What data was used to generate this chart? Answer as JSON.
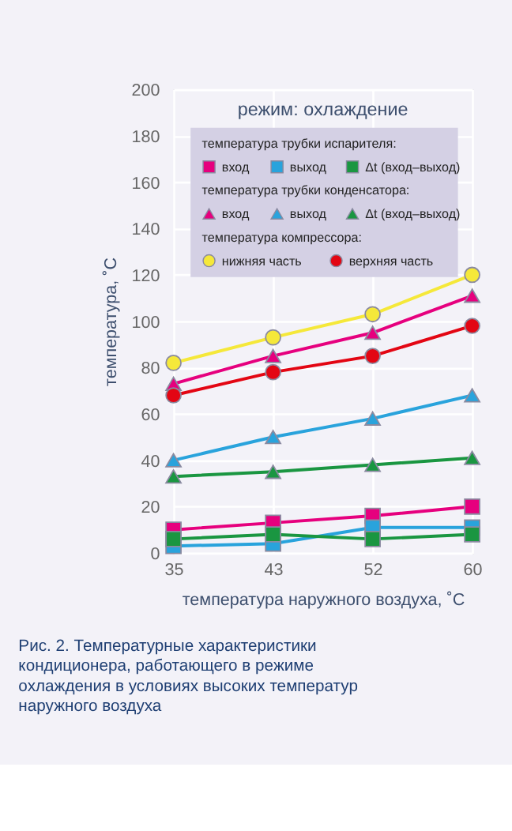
{
  "chart_data": {
    "type": "line",
    "title": "режим: охлаждение",
    "xlabel": "температура наружного воздуха, ˚С",
    "ylabel": "температура, ˚С",
    "categories": [
      "35",
      "43",
      "52",
      "60"
    ],
    "ylim": [
      0,
      200
    ],
    "yticks": [
      0,
      20,
      40,
      60,
      80,
      100,
      120,
      140,
      160,
      180,
      200
    ],
    "grid": true,
    "legend": "top",
    "series": [
      {
        "name": "вход",
        "color": "#e6007e",
        "marker": "square",
        "values": [
          10,
          13,
          16,
          20
        ]
      },
      {
        "name": "выход",
        "color": "#29a3dc",
        "marker": "square",
        "values": [
          3,
          4,
          11,
          11
        ]
      },
      {
        "name": "Δt (вход–выход)",
        "color": "#1a9641",
        "marker": "square",
        "values": [
          6,
          8,
          6,
          8
        ]
      },
      {
        "name": "вход",
        "color": "#e6007e",
        "marker": "triangle",
        "values": [
          73,
          85,
          95,
          111
        ]
      },
      {
        "name": "выход",
        "color": "#29a3dc",
        "marker": "triangle",
        "values": [
          40,
          50,
          58,
          68
        ]
      },
      {
        "name": "Δt (вход–выход)",
        "color": "#1a9641",
        "marker": "triangle",
        "values": [
          33,
          35,
          38,
          41
        ]
      },
      {
        "name": "нижняя часть",
        "color": "#f5e83a",
        "marker": "circle",
        "values": [
          82,
          93,
          103,
          120
        ]
      },
      {
        "name": "верхняя часть",
        "color": "#e30613",
        "marker": "circle",
        "values": [
          68,
          78,
          85,
          98
        ]
      }
    ],
    "annotations": [
      "температура трубки испарителя:",
      "температура трубки конденсатора:",
      "температура компрессора:",
      "Рис. 2. Температурные характеристики кондиционера, работающего в режиме охлаждения в условиях высоких температур наружного воздуха"
    ]
  }
}
